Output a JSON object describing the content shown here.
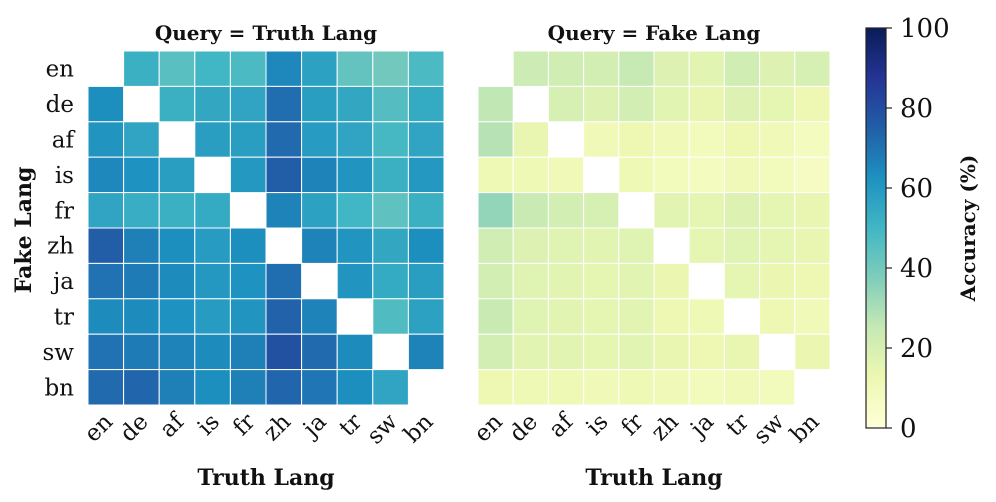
{
  "chart_data": {
    "type": "heatmap",
    "languages": [
      "en",
      "de",
      "af",
      "is",
      "fr",
      "zh",
      "ja",
      "tr",
      "sw",
      "bn"
    ],
    "colorbar": {
      "label": "Accuracy (%)",
      "range": [
        0,
        100
      ],
      "ticks": [
        "0",
        "20",
        "40",
        "60",
        "80",
        "100"
      ],
      "colormap": "YlGnBu"
    },
    "panels": [
      {
        "title": "Query = Truth Lang",
        "xlabel": "Truth Lang",
        "ylabel": "Fake Lang",
        "values": [
          [
            null,
            52,
            45,
            50,
            48,
            65,
            57,
            43,
            40,
            48
          ],
          [
            63,
            null,
            52,
            55,
            56,
            71,
            58,
            55,
            46,
            54
          ],
          [
            61,
            56,
            null,
            58,
            58,
            72,
            59,
            56,
            49,
            56
          ],
          [
            65,
            62,
            58,
            null,
            60,
            75,
            66,
            61,
            52,
            60
          ],
          [
            56,
            53,
            52,
            54,
            null,
            66,
            57,
            50,
            44,
            52
          ],
          [
            75,
            67,
            63,
            59,
            63,
            null,
            66,
            61,
            55,
            63
          ],
          [
            70,
            68,
            64,
            60,
            62,
            71,
            null,
            61,
            54,
            58
          ],
          [
            64,
            64,
            62,
            59,
            61,
            74,
            66,
            null,
            47,
            57
          ],
          [
            70,
            68,
            66,
            64,
            67,
            79,
            72,
            64,
            null,
            66
          ],
          [
            72,
            73,
            67,
            63,
            67,
            73,
            69,
            63,
            56,
            null
          ]
        ]
      },
      {
        "title": "Query = Fake Lang",
        "xlabel": "Truth Lang",
        "ylabel": "",
        "values": [
          [
            null,
            23,
            22,
            21,
            25,
            18,
            16,
            22,
            18,
            20
          ],
          [
            26,
            null,
            20,
            18,
            21,
            16,
            14,
            18,
            15,
            12
          ],
          [
            28,
            14,
            null,
            10,
            12,
            10,
            9,
            12,
            10,
            8
          ],
          [
            11,
            11,
            10,
            null,
            11,
            9,
            8,
            10,
            9,
            7
          ],
          [
            34,
            24,
            21,
            20,
            null,
            16,
            15,
            18,
            15,
            14
          ],
          [
            22,
            18,
            17,
            16,
            17,
            null,
            15,
            17,
            15,
            14
          ],
          [
            21,
            17,
            16,
            15,
            16,
            13,
            null,
            15,
            13,
            12
          ],
          [
            24,
            17,
            16,
            15,
            16,
            12,
            11,
            null,
            12,
            10
          ],
          [
            21,
            16,
            16,
            15,
            16,
            14,
            12,
            14,
            null,
            13
          ],
          [
            12,
            11,
            11,
            10,
            11,
            10,
            9,
            10,
            9,
            null
          ]
        ]
      }
    ]
  }
}
